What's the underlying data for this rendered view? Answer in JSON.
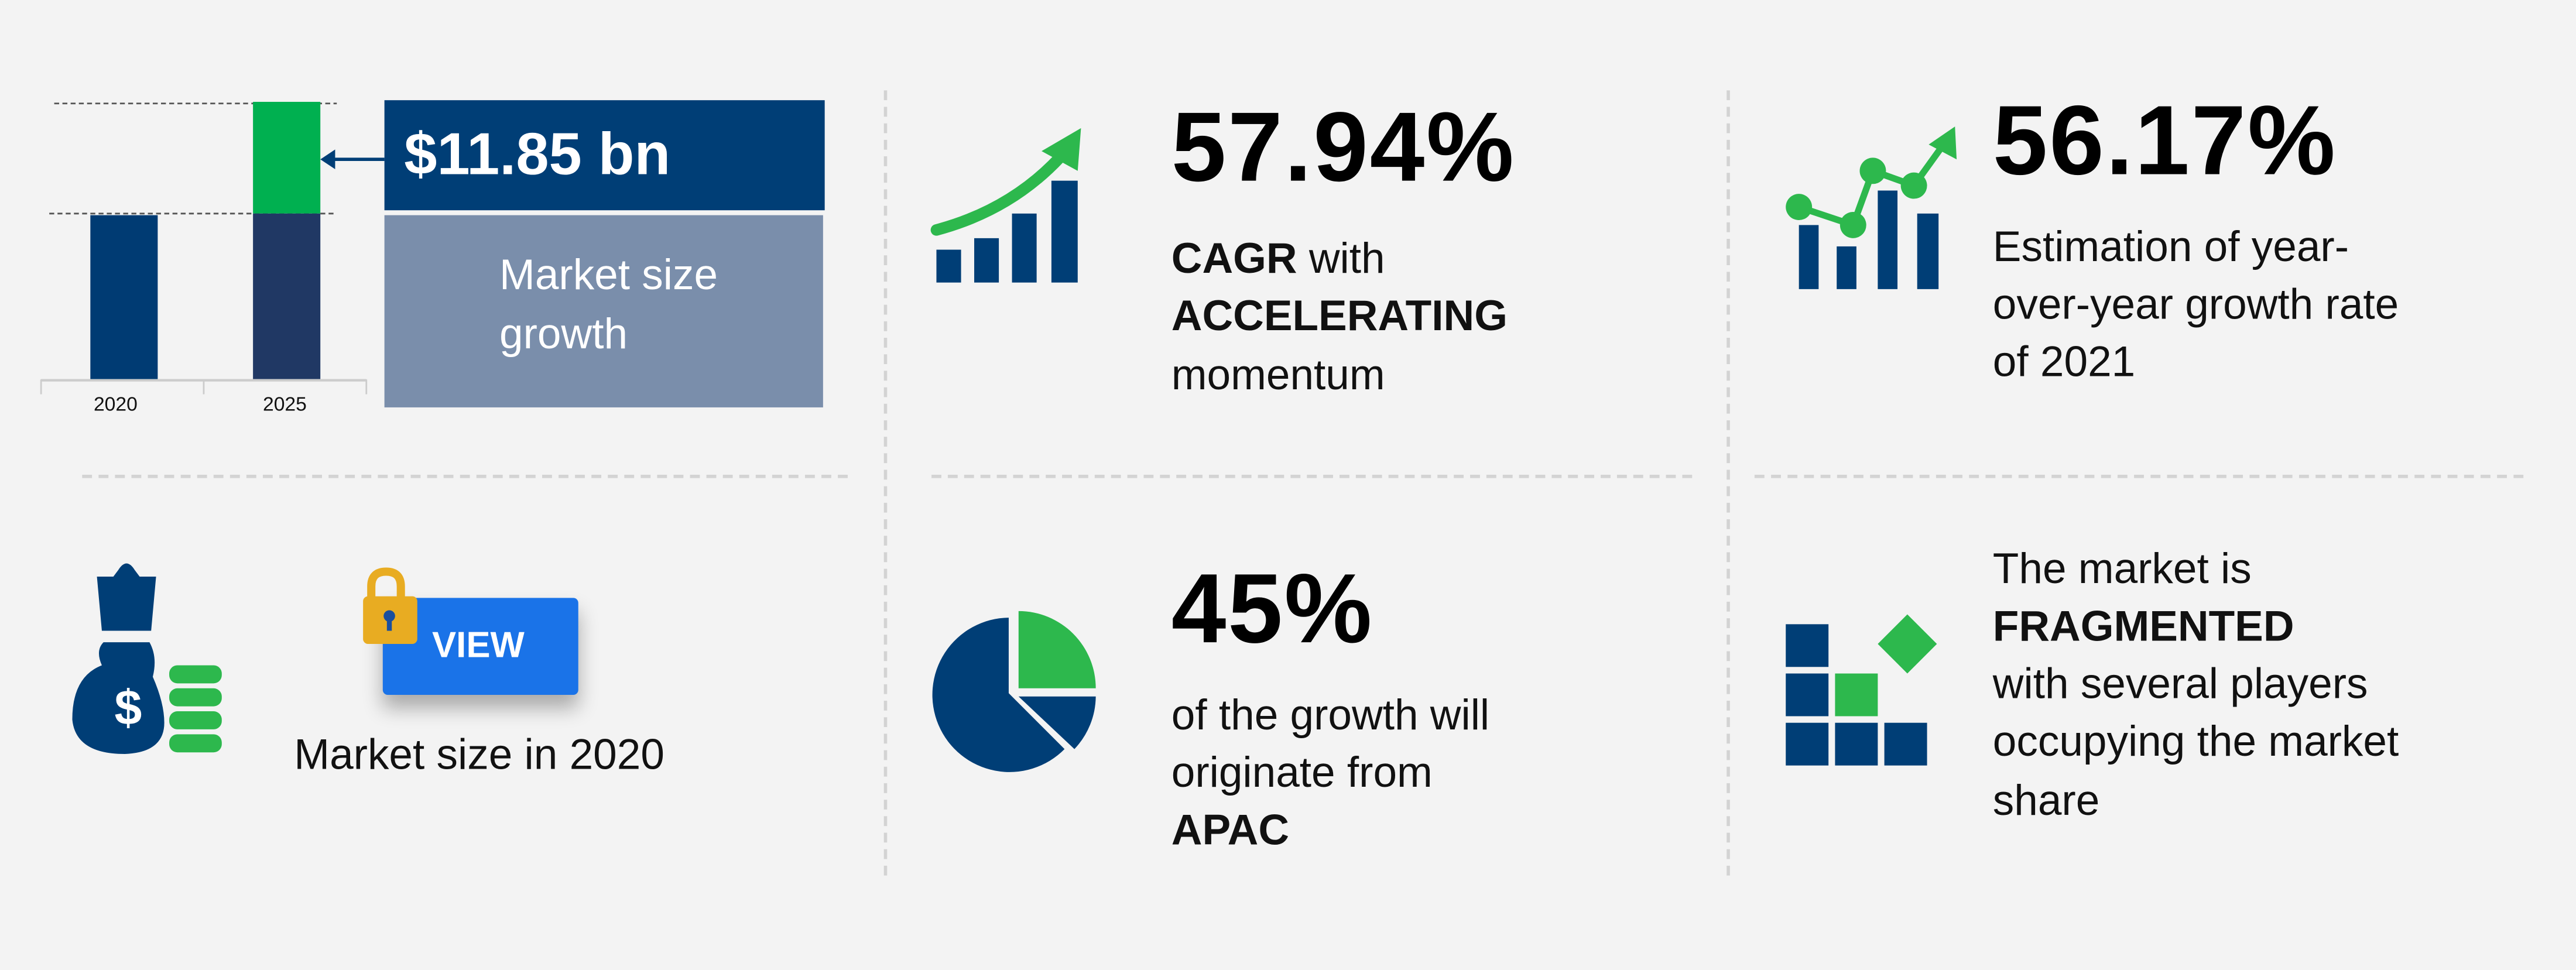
{
  "growth_panel": {
    "axis_labels": [
      "2020",
      "2025"
    ],
    "value_label": "$11.85 bn",
    "caption_line1": "Market size",
    "caption_line2": "growth"
  },
  "cagr_panel": {
    "value": "57.94%",
    "line1_bold": "CAGR",
    "line1_rest": " with",
    "line2_bold": "ACCELERATING",
    "line3": "momentum"
  },
  "yoy_panel": {
    "value": "56.17%",
    "lines": [
      "Estimation of year-",
      "over-year growth rate",
      "of 2021"
    ]
  },
  "market_size_panel": {
    "button_label": "VIEW",
    "caption": "Market size in 2020"
  },
  "region_panel": {
    "value": "45%",
    "line1": "of the growth will",
    "line2": "originate from",
    "line3_bold": "APAC"
  },
  "fragmented_panel": {
    "line1": "The market is",
    "line2_bold": "FRAGMENTED",
    "line3": "with several players",
    "line4": "occupying the market",
    "line5": "share"
  },
  "colors": {
    "navy": "#003e76",
    "dark_navy": "#1f3864",
    "green": "#00b050",
    "icon_green": "#2db84d",
    "slate": "#7a8eab",
    "button_blue": "#1a73e8",
    "lock_gold": "#e8ac22"
  }
}
